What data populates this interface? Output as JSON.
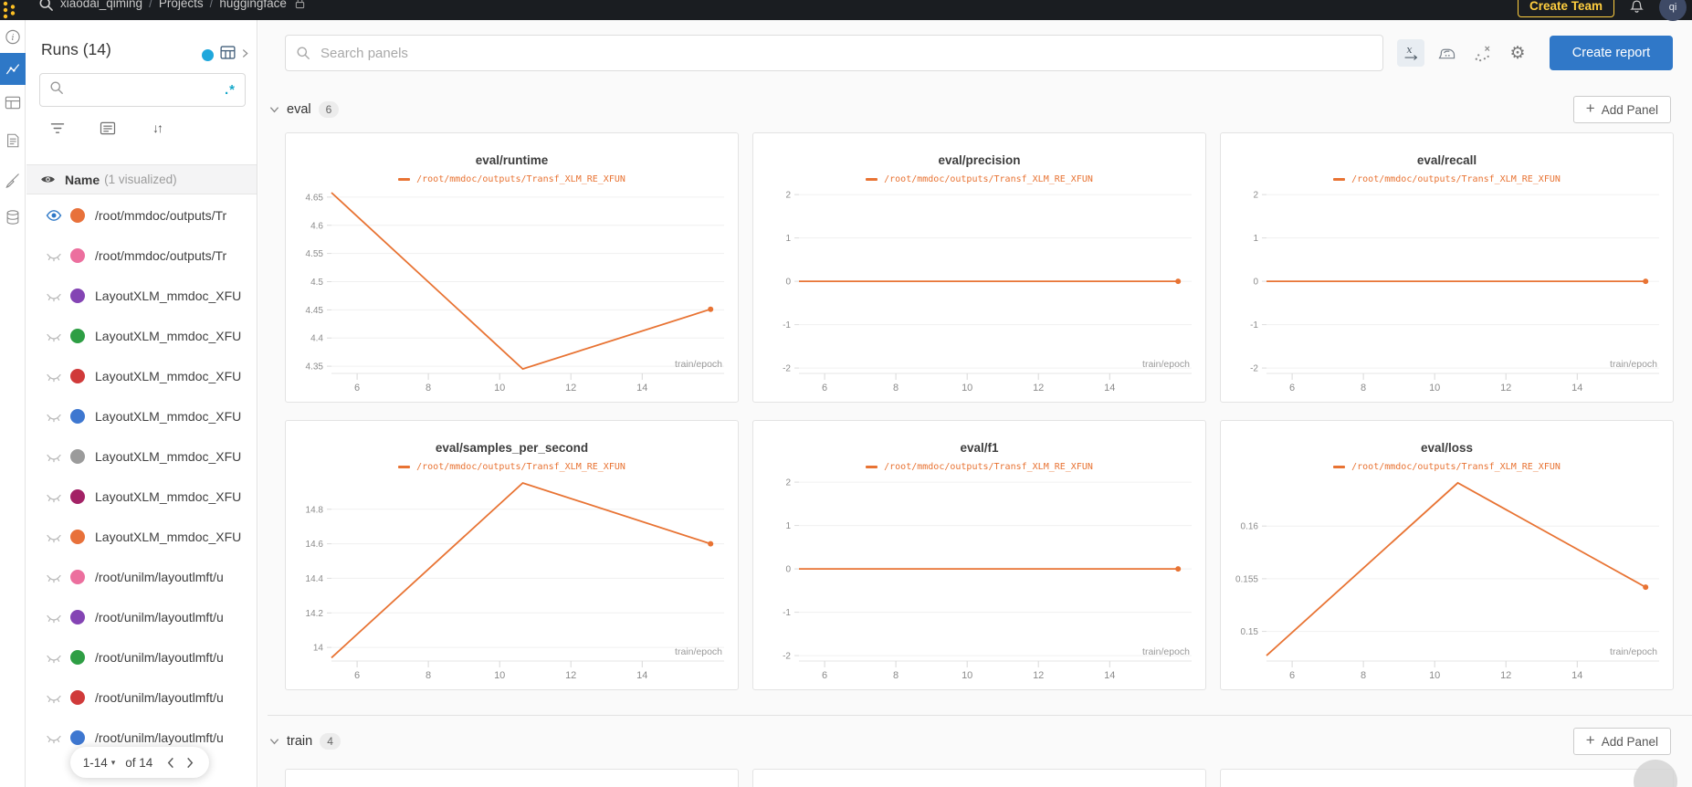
{
  "topbar": {
    "breadcrumb": {
      "entity": "xiaodai_qiming",
      "section": "Projects",
      "project": "huggingface"
    },
    "create_team_label": "Create Team",
    "avatar_initials": "qi"
  },
  "sidebar": {
    "title": "Runs (14)",
    "search_placeholder": "",
    "name_header": "Name",
    "visualized_note": "(1 visualized)",
    "runs": [
      {
        "name": "/root/mmdoc/outputs/Tr",
        "color": "#e8713a",
        "visible": true
      },
      {
        "name": "/root/mmdoc/outputs/Tr",
        "color": "#ec6f9e",
        "visible": false
      },
      {
        "name": "LayoutXLM_mmdoc_XFU",
        "color": "#8444b4",
        "visible": false
      },
      {
        "name": "LayoutXLM_mmdoc_XFU",
        "color": "#2e9e44",
        "visible": false
      },
      {
        "name": "LayoutXLM_mmdoc_XFU",
        "color": "#d03a3a",
        "visible": false
      },
      {
        "name": "LayoutXLM_mmdoc_XFU",
        "color": "#3e77d0",
        "visible": false
      },
      {
        "name": "LayoutXLM_mmdoc_XFU",
        "color": "#9b9b9b",
        "visible": false
      },
      {
        "name": "LayoutXLM_mmdoc_XFU",
        "color": "#a32266",
        "visible": false
      },
      {
        "name": "LayoutXLM_mmdoc_XFU",
        "color": "#e8713a",
        "visible": false
      },
      {
        "name": "/root/unilm/layoutlmft/u",
        "color": "#ec6f9e",
        "visible": false
      },
      {
        "name": "/root/unilm/layoutlmft/u",
        "color": "#8444b4",
        "visible": false
      },
      {
        "name": "/root/unilm/layoutlmft/u",
        "color": "#2e9e44",
        "visible": false
      },
      {
        "name": "/root/unilm/layoutlmft/u",
        "color": "#d03a3a",
        "visible": false
      },
      {
        "name": "/root/unilm/layoutlmft/u",
        "color": "#3e77d0",
        "visible": false
      }
    ],
    "pagination": {
      "range_label": "1-14",
      "of_label": "of 14"
    }
  },
  "main": {
    "search_placeholder": "Search panels",
    "create_report_label": "Create report",
    "sections": [
      {
        "label": "eval",
        "count": "6",
        "add_panel_label": "Add Panel"
      },
      {
        "label": "train",
        "count": "4",
        "add_panel_label": "Add Panel"
      }
    ]
  },
  "icons": {
    "gear": "⚙",
    "sort": "↓↑",
    "caret_down": "▾",
    "regex": ".*",
    "plus": "+"
  },
  "colors": {
    "accent_blue": "#3078c8",
    "selected_rail": "#2e78c7",
    "line_orange": "#e87333",
    "teal": "#1fa7dc",
    "topbar_bg": "#1a1d21",
    "yellow": "#ffce3f"
  },
  "chart_data": [
    {
      "type": "line",
      "title": "eval/runtime",
      "series": [
        {
          "name": "/root/mmdoc/outputs/Transf_XLM_RE_XFUN",
          "color": "#e87333",
          "x": [
            5.28,
            10.65,
            15.92
          ],
          "y": [
            4.658,
            4.345,
            4.451
          ]
        }
      ],
      "xlabel": "train/epoch",
      "xticks": [
        6,
        8,
        10,
        12,
        14
      ],
      "xlim": [
        5.28,
        16.3
      ],
      "yticks": [
        4.65,
        4.6,
        4.55,
        4.5,
        4.45,
        4.4,
        4.35
      ],
      "ylim": [
        4.342,
        4.658
      ],
      "grid": true
    },
    {
      "type": "line",
      "title": "eval/precision",
      "series": [
        {
          "name": "/root/mmdoc/outputs/Transf_XLM_RE_XFUN",
          "color": "#e87333",
          "x": [
            5.28,
            10.65,
            15.92
          ],
          "y": [
            0,
            0,
            0
          ]
        }
      ],
      "xlabel": "train/epoch",
      "xticks": [
        6,
        8,
        10,
        12,
        14
      ],
      "xlim": [
        5.28,
        16.3
      ],
      "yticks": [
        2,
        1,
        0,
        -1,
        -2
      ],
      "ylim": [
        -2.06,
        2.045
      ],
      "grid": true
    },
    {
      "type": "line",
      "title": "eval/recall",
      "series": [
        {
          "name": "/root/mmdoc/outputs/Transf_XLM_RE_XFUN",
          "color": "#e87333",
          "x": [
            5.28,
            10.65,
            15.92
          ],
          "y": [
            0,
            0,
            0
          ]
        }
      ],
      "xlabel": "train/epoch",
      "xticks": [
        6,
        8,
        10,
        12,
        14
      ],
      "xlim": [
        5.28,
        16.3
      ],
      "yticks": [
        2,
        1,
        0,
        -1,
        -2
      ],
      "ylim": [
        -2.06,
        2.045
      ],
      "grid": true
    },
    {
      "type": "line",
      "title": "eval/samples_per_second",
      "series": [
        {
          "name": "/root/mmdoc/outputs/Transf_XLM_RE_XFUN",
          "color": "#e87333",
          "x": [
            5.28,
            10.65,
            15.92
          ],
          "y": [
            13.94,
            14.952,
            14.6
          ]
        }
      ],
      "xlabel": "train/epoch",
      "xticks": [
        6,
        8,
        10,
        12,
        14
      ],
      "xlim": [
        5.28,
        16.3
      ],
      "yticks": [
        14.8,
        14.6,
        14.4,
        14.2,
        14
      ],
      "ylim": [
        13.937,
        14.968
      ],
      "grid": true
    },
    {
      "type": "line",
      "title": "eval/f1",
      "series": [
        {
          "name": "/root/mmdoc/outputs/Transf_XLM_RE_XFUN",
          "color": "#e87333",
          "x": [
            5.28,
            10.65,
            15.92
          ],
          "y": [
            0,
            0,
            0
          ]
        }
      ],
      "xlabel": "train/epoch",
      "xticks": [
        6,
        8,
        10,
        12,
        14
      ],
      "xlim": [
        5.28,
        16.3
      ],
      "yticks": [
        2,
        1,
        0,
        -1,
        -2
      ],
      "ylim": [
        -2.06,
        2.045
      ],
      "grid": true
    },
    {
      "type": "line",
      "title": "eval/loss",
      "series": [
        {
          "name": "/root/mmdoc/outputs/Transf_XLM_RE_XFUN",
          "color": "#e87333",
          "x": [
            5.28,
            10.65,
            15.92
          ],
          "y": [
            0.1477,
            0.1641,
            0.1542
          ]
        }
      ],
      "xlabel": "train/epoch",
      "xticks": [
        6,
        8,
        10,
        12,
        14
      ],
      "xlim": [
        5.28,
        16.3
      ],
      "yticks": [
        0.16,
        0.155,
        0.15
      ],
      "ylim": [
        0.14745,
        0.16435
      ],
      "grid": true
    }
  ]
}
